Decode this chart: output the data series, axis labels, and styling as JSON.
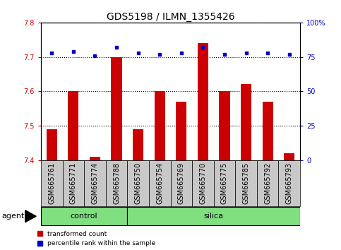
{
  "title": "GDS5198 / ILMN_1355426",
  "samples": [
    "GSM665761",
    "GSM665771",
    "GSM665774",
    "GSM665788",
    "GSM665750",
    "GSM665754",
    "GSM665769",
    "GSM665770",
    "GSM665775",
    "GSM665785",
    "GSM665792",
    "GSM665793"
  ],
  "red_values": [
    7.49,
    7.6,
    7.41,
    7.7,
    7.49,
    7.6,
    7.57,
    7.74,
    7.6,
    7.62,
    7.57,
    7.42
  ],
  "blue_values_pct": [
    78,
    79,
    76,
    82,
    78,
    77,
    78,
    82,
    77,
    78,
    78,
    77
  ],
  "ylim_left": [
    7.4,
    7.8
  ],
  "ylim_right": [
    0,
    100
  ],
  "yticks_left": [
    7.4,
    7.5,
    7.6,
    7.7,
    7.8
  ],
  "yticks_right": [
    0,
    25,
    50,
    75,
    100
  ],
  "ytick_labels_right": [
    "0",
    "25",
    "50",
    "75",
    "100%"
  ],
  "control_count": 4,
  "silica_count": 8,
  "bar_color": "#cc0000",
  "dot_color": "#0000cc",
  "green_color": "#80e080",
  "gray_color": "#c8c8c8",
  "agent_label": "agent",
  "control_label": "control",
  "silica_label": "silica",
  "legend_red": "transformed count",
  "legend_blue": "percentile rank within the sample",
  "title_fontsize": 10,
  "tick_fontsize": 7,
  "label_fontsize": 8
}
